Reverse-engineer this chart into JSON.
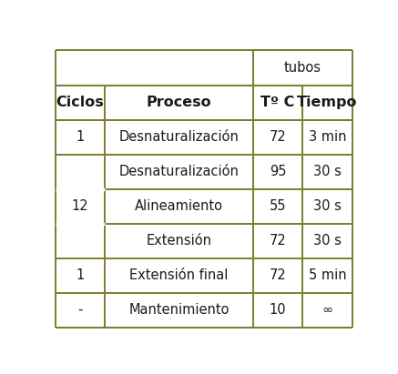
{
  "title_cell": "tubos",
  "header_row": [
    "Ciclos",
    "Proceso",
    "Tº C",
    "Tiempo"
  ],
  "rows": [
    {
      "ciclos": "1",
      "proceso": "Desnaturalización",
      "temp": "72",
      "tiempo": "3 min"
    },
    {
      "ciclos": "12",
      "proceso": "Desnaturalización",
      "temp": "95",
      "tiempo": "30 s"
    },
    {
      "ciclos": "",
      "proceso": "Alineamiento",
      "temp": "55",
      "tiempo": "30 s"
    },
    {
      "ciclos": "",
      "proceso": "Extensión",
      "temp": "72",
      "tiempo": "30 s"
    },
    {
      "ciclos": "1",
      "proceso": "Extensión final",
      "temp": "72",
      "tiempo": "5 min"
    },
    {
      "ciclos": "-",
      "proceso": "Mantenimiento",
      "temp": "10",
      "tiempo": "∞"
    }
  ],
  "border_color": "#7d7d2e",
  "bg_color": "#ffffff",
  "text_color": "#1a1a1a",
  "font_size": 10.5,
  "header_font_size": 11.5,
  "tubos_font_size": 10.5
}
